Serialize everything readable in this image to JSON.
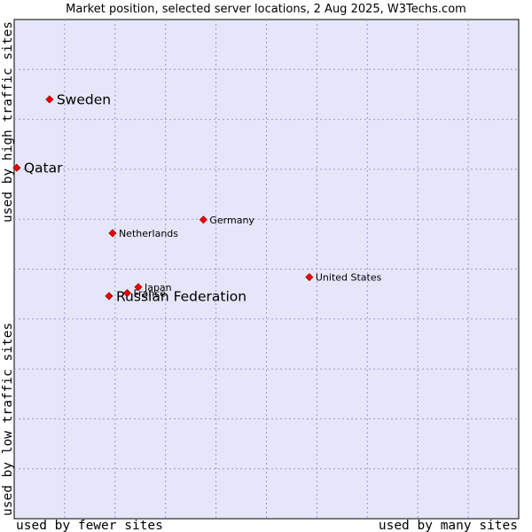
{
  "chart_data": {
    "type": "scatter",
    "title": "Market position, selected server locations, 2 Aug 2025, W3Techs.com",
    "x_label_low": "used by fewer sites",
    "x_label_high": "used by many sites",
    "y_label_high": "used by high traffic sites",
    "y_label_low": "used by low traffic sites",
    "xlim": [
      0,
      100
    ],
    "ylim": [
      0,
      100
    ],
    "grid": true,
    "point_color": "#ee0000",
    "plot_background": "#e6e6fa",
    "points": [
      {
        "name": "Sweden",
        "x": 7.0,
        "y": 84.0,
        "size": "large"
      },
      {
        "name": "Qatar",
        "x": 0.5,
        "y": 70.3,
        "size": "large"
      },
      {
        "name": "Germany",
        "x": 37.5,
        "y": 59.9,
        "size": "small"
      },
      {
        "name": "Netherlands",
        "x": 19.5,
        "y": 57.2,
        "size": "small"
      },
      {
        "name": "United States",
        "x": 58.5,
        "y": 48.4,
        "size": "small"
      },
      {
        "name": "Japan",
        "x": 24.6,
        "y": 46.4,
        "size": "small"
      },
      {
        "name": "France",
        "x": 22.4,
        "y": 45.2,
        "size": "small"
      },
      {
        "name": "Russian Federation",
        "x": 18.8,
        "y": 44.6,
        "size": "large"
      }
    ]
  }
}
